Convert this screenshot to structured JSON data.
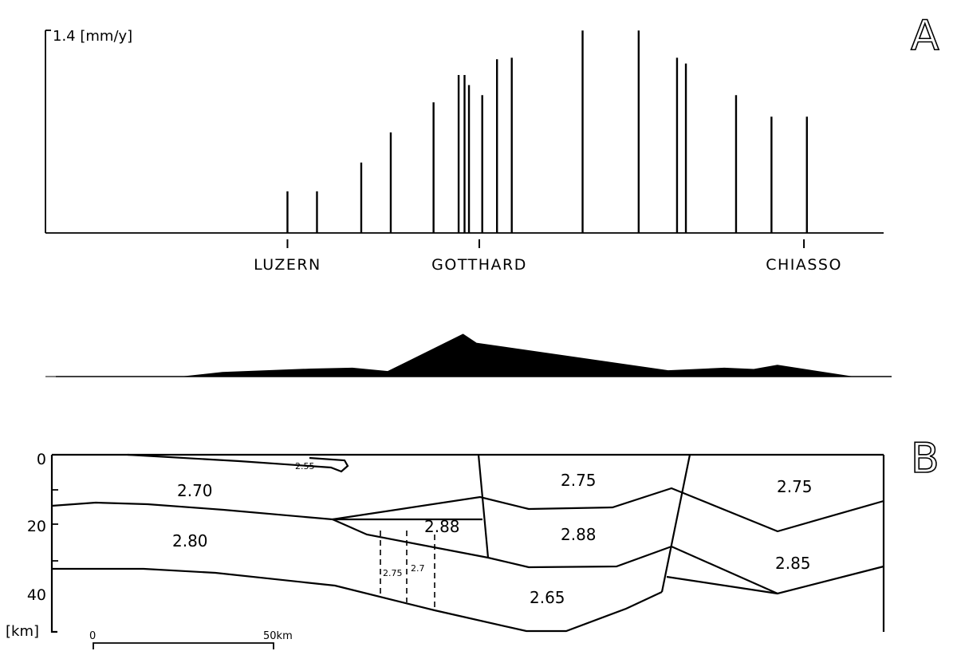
{
  "panels": {
    "a_label": "A",
    "b_label": "B"
  },
  "chart_data": [
    {
      "type": "bar",
      "panel": "A",
      "ylabel": "1.4 [mm/y]",
      "ylim": [
        0,
        1.4
      ],
      "x_unit": "km",
      "xlim": [
        -47,
        237
      ],
      "tick_labels": [
        {
          "text": "LUZERN",
          "x": 35
        },
        {
          "text": "GOTTHARD",
          "x": 100
        },
        {
          "text": "CHIASSO",
          "x": 210
        }
      ],
      "points": [
        {
          "x": 35,
          "value": 0.29
        },
        {
          "x": 45,
          "value": 0.29
        },
        {
          "x": 60,
          "value": 0.49
        },
        {
          "x": 70,
          "value": 0.7
        },
        {
          "x": 84.5,
          "value": 0.91
        },
        {
          "x": 93,
          "value": 1.1
        },
        {
          "x": 95,
          "value": 1.1
        },
        {
          "x": 96.5,
          "value": 1.03
        },
        {
          "x": 101,
          "value": 0.96
        },
        {
          "x": 106,
          "value": 1.21
        },
        {
          "x": 111,
          "value": 1.22
        },
        {
          "x": 135,
          "value": 1.41
        },
        {
          "x": 154,
          "value": 1.41
        },
        {
          "x": 167,
          "value": 1.22
        },
        {
          "x": 170,
          "value": 1.18
        },
        {
          "x": 187,
          "value": 0.96
        },
        {
          "x": 199,
          "value": 0.81
        },
        {
          "x": 211,
          "value": 0.81
        }
      ]
    },
    {
      "type": "area",
      "panel": "topography",
      "x_unit": "km",
      "x": [
        -47,
        0,
        13,
        43,
        57,
        69,
        94.5,
        99,
        164,
        183,
        193,
        201,
        226,
        237
      ],
      "values": [
        0,
        0,
        0.1,
        0.18,
        0.2,
        0.12,
        1.0,
        0.79,
        0.14,
        0.2,
        0.17,
        0.27,
        0,
        0
      ]
    }
  ],
  "section": {
    "y_ticks": [
      "0",
      "20",
      "40"
    ],
    "y_unit": "[km]",
    "densities": {
      "d255": "2.55",
      "d270": "2.70",
      "d280": "2.80",
      "d288w": "2.88",
      "d275m": "2.75",
      "d288m": "2.88",
      "d265": "2.65",
      "d275e": "2.75",
      "d285": "2.85",
      "d275s": "2.75",
      "d27s": "2.7"
    },
    "scale": {
      "zero": "0",
      "fifty": "50km"
    }
  }
}
